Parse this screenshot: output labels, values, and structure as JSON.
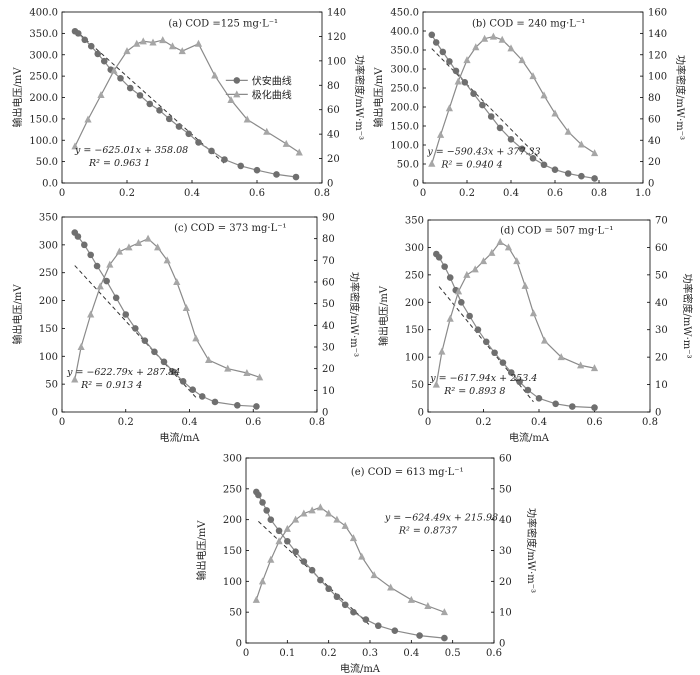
{
  "chart_data": [
    {
      "id": "a",
      "type": "scatter",
      "panel_label": "(a) COD =125 mg·L⁻¹",
      "xlim": [
        0,
        0.8
      ],
      "xticks": [
        0,
        0.2,
        0.4,
        0.6,
        0.8
      ],
      "xtick_labels": [
        "0",
        "0.2",
        "0.4",
        "0.6",
        "0.8"
      ],
      "ylim": [
        0,
        400
      ],
      "yticks": [
        0,
        50,
        100,
        150,
        200,
        250,
        300,
        350,
        400
      ],
      "ytick_labels": [
        "0.0",
        "50.0",
        "100.0",
        "150.0",
        "200.0",
        "250.0",
        "300.0",
        "350.0",
        "400.0"
      ],
      "y2lim": [
        0,
        140
      ],
      "y2ticks": [
        0,
        20,
        40,
        60,
        80,
        100,
        120,
        140
      ],
      "y2tick_labels": [
        "0",
        "20",
        "40",
        "60",
        "80",
        "100",
        "120",
        "140"
      ],
      "xlabel": "",
      "ylabel": "输出电压/mV",
      "y2label": "功率密度/mW·m⁻³",
      "legend": {
        "position": "right-middle",
        "entries": [
          "伏安曲线",
          "极化曲线"
        ]
      },
      "equation": "y = −625.01x + 358.08",
      "r2": "R² = 0.963 1",
      "fit": {
        "x": [
          0.04,
          0.5
        ],
        "y": [
          358.1,
          45.6
        ]
      },
      "series": [
        {
          "name": "伏安曲线",
          "axis": "left",
          "marker": "circle",
          "x": [
            0.04,
            0.05,
            0.07,
            0.09,
            0.11,
            0.13,
            0.15,
            0.18,
            0.21,
            0.24,
            0.27,
            0.3,
            0.33,
            0.36,
            0.39,
            0.42,
            0.46,
            0.5,
            0.55,
            0.6,
            0.66,
            0.72
          ],
          "y": [
            355,
            350,
            335,
            320,
            302,
            285,
            265,
            245,
            222,
            205,
            185,
            170,
            150,
            132,
            115,
            95,
            75,
            55,
            40,
            30,
            20,
            14
          ]
        },
        {
          "name": "极化曲线",
          "axis": "right",
          "marker": "triangle",
          "x": [
            0.04,
            0.08,
            0.12,
            0.16,
            0.2,
            0.23,
            0.25,
            0.28,
            0.31,
            0.34,
            0.37,
            0.42,
            0.47,
            0.52,
            0.57,
            0.63,
            0.69,
            0.73
          ],
          "y": [
            30,
            52,
            72,
            92,
            108,
            114,
            116,
            115,
            117,
            112,
            108,
            114,
            88,
            68,
            52,
            42,
            32,
            25
          ]
        }
      ]
    },
    {
      "id": "b",
      "type": "scatter",
      "panel_label": "(b) COD = 240 mg·L⁻¹",
      "xlim": [
        0,
        1.0
      ],
      "xticks": [
        0,
        0.2,
        0.4,
        0.6,
        0.8,
        1.0
      ],
      "xtick_labels": [
        "0",
        "0.2",
        "0.4",
        "0.6",
        "0.8",
        "1.0"
      ],
      "ylim": [
        0,
        450
      ],
      "yticks": [
        0,
        50,
        100,
        150,
        200,
        250,
        300,
        350,
        400,
        450
      ],
      "ytick_labels": [
        "0",
        "50.0",
        "100.0",
        "150.0",
        "200.0",
        "250.0",
        "300.0",
        "350.0",
        "400.0",
        "450.0"
      ],
      "y2lim": [
        0,
        160
      ],
      "y2ticks": [
        0,
        20,
        40,
        60,
        80,
        100,
        120,
        140,
        160
      ],
      "y2tick_labels": [
        "0",
        "20",
        "40",
        "60",
        "80",
        "100",
        "120",
        "140",
        "160"
      ],
      "xlabel": "",
      "ylabel": "输出电压/mV",
      "y2label": "功率密度/mW·m⁻³",
      "equation": "y = −590.43x + 377.33",
      "r2": "R² = 0.940 4",
      "fit": {
        "x": [
          0.04,
          0.55
        ],
        "y": [
          353.7,
          52.6
        ]
      },
      "series": [
        {
          "name": "伏安曲线",
          "axis": "left",
          "marker": "circle",
          "x": [
            0.04,
            0.06,
            0.09,
            0.12,
            0.15,
            0.19,
            0.23,
            0.27,
            0.31,
            0.35,
            0.4,
            0.45,
            0.5,
            0.55,
            0.6,
            0.66,
            0.72,
            0.78
          ],
          "y": [
            390,
            370,
            345,
            320,
            295,
            265,
            235,
            205,
            175,
            145,
            115,
            90,
            65,
            48,
            35,
            25,
            18,
            12
          ]
        },
        {
          "name": "极化曲线",
          "axis": "right",
          "marker": "triangle",
          "x": [
            0.04,
            0.08,
            0.12,
            0.16,
            0.2,
            0.24,
            0.28,
            0.32,
            0.36,
            0.4,
            0.45,
            0.5,
            0.55,
            0.6,
            0.66,
            0.72,
            0.78
          ],
          "y": [
            18,
            45,
            70,
            95,
            115,
            127,
            135,
            137,
            134,
            126,
            115,
            100,
            82,
            65,
            48,
            36,
            28
          ]
        }
      ]
    },
    {
      "id": "c",
      "type": "scatter",
      "panel_label": "(c) COD = 373 mg·L⁻¹",
      "xlim": [
        0,
        0.8
      ],
      "xticks": [
        0,
        0.2,
        0.4,
        0.6,
        0.8
      ],
      "xtick_labels": [
        "0",
        "0.2",
        "0.4",
        "0.6",
        "0.8"
      ],
      "ylim": [
        0,
        350
      ],
      "yticks": [
        0,
        50,
        100,
        150,
        200,
        250,
        300,
        350
      ],
      "ytick_labels": [
        "0",
        "50",
        "100",
        "150",
        "200",
        "250",
        "300",
        "350"
      ],
      "y2lim": [
        0,
        90
      ],
      "y2ticks": [
        0,
        10,
        20,
        30,
        40,
        50,
        60,
        70,
        80,
        90
      ],
      "y2tick_labels": [
        "0",
        "10",
        "20",
        "30",
        "40",
        "50",
        "60",
        "70",
        "80",
        "90"
      ],
      "xlabel": "电流/mA",
      "ylabel": "输出电压/mV",
      "y2label": "功率密度/mW·m⁻³",
      "equation": "y = −622.79x + 287.84",
      "r2": "R² = 0.913 4",
      "fit": {
        "x": [
          0.04,
          0.42
        ],
        "y": [
          262.9,
          26.3
        ]
      },
      "series": [
        {
          "name": "伏安曲线",
          "axis": "left",
          "marker": "circle",
          "x": [
            0.04,
            0.05,
            0.07,
            0.09,
            0.11,
            0.14,
            0.17,
            0.2,
            0.23,
            0.26,
            0.29,
            0.32,
            0.35,
            0.38,
            0.41,
            0.44,
            0.48,
            0.55,
            0.61
          ],
          "y": [
            322,
            315,
            300,
            282,
            262,
            235,
            205,
            175,
            150,
            128,
            108,
            90,
            72,
            55,
            40,
            28,
            18,
            12,
            10
          ]
        },
        {
          "name": "极化曲线",
          "axis": "right",
          "marker": "triangle",
          "x": [
            0.04,
            0.06,
            0.09,
            0.12,
            0.15,
            0.18,
            0.21,
            0.24,
            0.27,
            0.3,
            0.33,
            0.36,
            0.39,
            0.42,
            0.46,
            0.52,
            0.58,
            0.62
          ],
          "y": [
            15,
            30,
            45,
            58,
            68,
            74,
            76,
            78,
            80,
            76,
            70,
            60,
            48,
            34,
            24,
            20,
            18,
            16
          ]
        }
      ]
    },
    {
      "id": "d",
      "type": "scatter",
      "panel_label": "(d) COD = 507 mg·L⁻¹",
      "xlim": [
        0,
        0.8
      ],
      "xticks": [
        0,
        0.2,
        0.4,
        0.6,
        0.8
      ],
      "xtick_labels": [
        "0",
        "0.2",
        "0.4",
        "0.6",
        "0.8"
      ],
      "ylim": [
        0,
        350
      ],
      "yticks": [
        0,
        50,
        100,
        150,
        200,
        250,
        300,
        350
      ],
      "ytick_labels": [
        "0",
        "50",
        "100",
        "150",
        "200",
        "250",
        "300",
        "350"
      ],
      "y2lim": [
        0,
        70
      ],
      "y2ticks": [
        0,
        10,
        20,
        30,
        40,
        50,
        60,
        70
      ],
      "y2tick_labels": [
        "0",
        "10",
        "20",
        "30",
        "40",
        "50",
        "60",
        "70"
      ],
      "xlabel": "电流/mA",
      "ylabel": "输出电压/mV",
      "y2label": "功率密度/mW·m⁻³",
      "equation": "y = −617.94x + 253.4",
      "r2": "R² = 0.893 8",
      "fit": {
        "x": [
          0.04,
          0.38
        ],
        "y": [
          228.7,
          18.6
        ]
      },
      "series": [
        {
          "name": "伏安曲线",
          "axis": "left",
          "marker": "circle",
          "x": [
            0.03,
            0.04,
            0.06,
            0.08,
            0.1,
            0.12,
            0.15,
            0.18,
            0.21,
            0.24,
            0.27,
            0.3,
            0.33,
            0.36,
            0.4,
            0.46,
            0.52,
            0.6
          ],
          "y": [
            288,
            282,
            265,
            245,
            222,
            200,
            175,
            150,
            128,
            108,
            90,
            72,
            55,
            40,
            25,
            15,
            10,
            8
          ]
        },
        {
          "name": "极化曲线",
          "axis": "right",
          "marker": "triangle",
          "x": [
            0.03,
            0.05,
            0.08,
            0.11,
            0.14,
            0.17,
            0.2,
            0.23,
            0.26,
            0.29,
            0.32,
            0.35,
            0.38,
            0.42,
            0.48,
            0.55,
            0.6
          ],
          "y": [
            10,
            22,
            34,
            44,
            50,
            52,
            55,
            58,
            62,
            60,
            55,
            46,
            36,
            26,
            20,
            17,
            16
          ]
        }
      ]
    },
    {
      "id": "e",
      "type": "scatter",
      "panel_label": "(e) COD = 613 mg·L⁻¹",
      "xlim": [
        0,
        0.6
      ],
      "xticks": [
        0,
        0.1,
        0.2,
        0.3,
        0.4,
        0.5,
        0.6
      ],
      "xtick_labels": [
        "0",
        "0.1",
        "0.2",
        "0.3",
        "0.4",
        "0.5",
        "0.6"
      ],
      "ylim": [
        0,
        300
      ],
      "yticks": [
        0,
        50,
        100,
        150,
        200,
        250,
        300
      ],
      "ytick_labels": [
        "0",
        "50",
        "100",
        "150",
        "200",
        "250",
        "300"
      ],
      "y2lim": [
        0,
        60
      ],
      "y2ticks": [
        0,
        10,
        20,
        30,
        40,
        50,
        60
      ],
      "y2tick_labels": [
        "0",
        "10",
        "20",
        "30",
        "40",
        "50",
        "60"
      ],
      "xlabel": "电流/mA",
      "ylabel": "输出电压/mV",
      "y2label": "功率密度/mW·m⁻³",
      "equation": "y = −624.49x + 215.98",
      "r2": "R² = 0.8737",
      "fit": {
        "x": [
          0.03,
          0.3
        ],
        "y": [
          197.2,
          28.6
        ]
      },
      "series": [
        {
          "name": "伏安曲线",
          "axis": "left",
          "marker": "circle",
          "x": [
            0.025,
            0.03,
            0.04,
            0.05,
            0.06,
            0.08,
            0.1,
            0.12,
            0.14,
            0.16,
            0.18,
            0.2,
            0.22,
            0.24,
            0.26,
            0.29,
            0.32,
            0.36,
            0.42,
            0.48
          ],
          "y": [
            245,
            240,
            228,
            215,
            200,
            182,
            165,
            148,
            132,
            118,
            102,
            88,
            75,
            62,
            50,
            38,
            28,
            20,
            12,
            8
          ]
        },
        {
          "name": "极化曲线",
          "axis": "right",
          "marker": "triangle",
          "x": [
            0.025,
            0.04,
            0.06,
            0.08,
            0.1,
            0.12,
            0.14,
            0.16,
            0.18,
            0.2,
            0.22,
            0.24,
            0.26,
            0.28,
            0.31,
            0.35,
            0.4,
            0.44,
            0.48
          ],
          "y": [
            14,
            20,
            27,
            33,
            37,
            40,
            42,
            43,
            44,
            42,
            40,
            38,
            34,
            28,
            22,
            18,
            14,
            12,
            10
          ]
        }
      ]
    }
  ]
}
